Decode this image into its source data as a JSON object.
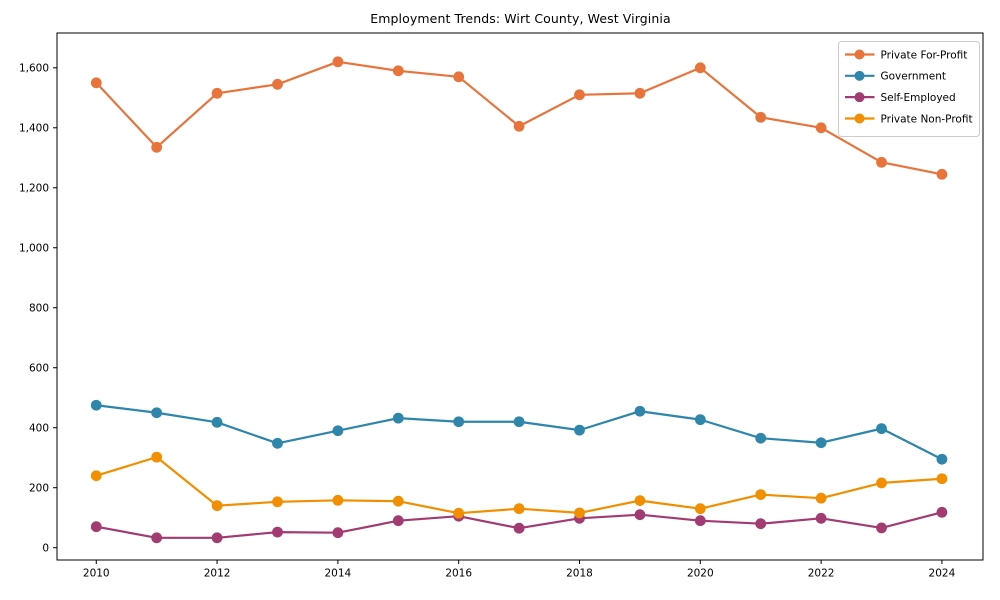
{
  "chart_data": {
    "type": "line",
    "title": "Employment Trends: Wirt County, West Virginia",
    "xlabel": "",
    "ylabel": "",
    "grid": false,
    "x": [
      2010,
      2011,
      2012,
      2013,
      2014,
      2015,
      2016,
      2017,
      2018,
      2019,
      2020,
      2021,
      2022,
      2023,
      2024
    ],
    "x_ticks": [
      2010,
      2012,
      2014,
      2016,
      2018,
      2020,
      2022,
      2024
    ],
    "x_tick_labels": [
      "2010",
      "2012",
      "2014",
      "2016",
      "2018",
      "2020",
      "2022",
      "2024"
    ],
    "y_ticks": [
      0,
      200,
      400,
      600,
      800,
      1000,
      1200,
      1400,
      1600
    ],
    "y_tick_labels": [
      "0",
      "200",
      "400",
      "600",
      "800",
      "1,000",
      "1,200",
      "1,400",
      "1,600"
    ],
    "xlim": [
      2009.35,
      2024.68
    ],
    "ylim": [
      -41,
      1716
    ],
    "legend": {
      "position": "upper right"
    },
    "series": [
      {
        "name": "Private For-Profit",
        "color": "#E8743B",
        "values": [
          1550,
          1335,
          1515,
          1545,
          1620,
          1590,
          1570,
          1405,
          1510,
          1515,
          1600,
          1435,
          1400,
          1285,
          1245
        ]
      },
      {
        "name": "Government",
        "color": "#2E86AB",
        "values": [
          475,
          450,
          418,
          348,
          390,
          432,
          420,
          420,
          392,
          455,
          427,
          365,
          350,
          397,
          295
        ]
      },
      {
        "name": "Self-Employed",
        "color": "#A23B72",
        "values": [
          70,
          33,
          33,
          52,
          50,
          90,
          105,
          65,
          98,
          110,
          90,
          80,
          98,
          66,
          118
        ]
      },
      {
        "name": "Private Non-Profit",
        "color": "#F18F01",
        "values": [
          240,
          302,
          140,
          153,
          158,
          155,
          115,
          130,
          116,
          157,
          130,
          177,
          165,
          216,
          230
        ]
      }
    ]
  }
}
